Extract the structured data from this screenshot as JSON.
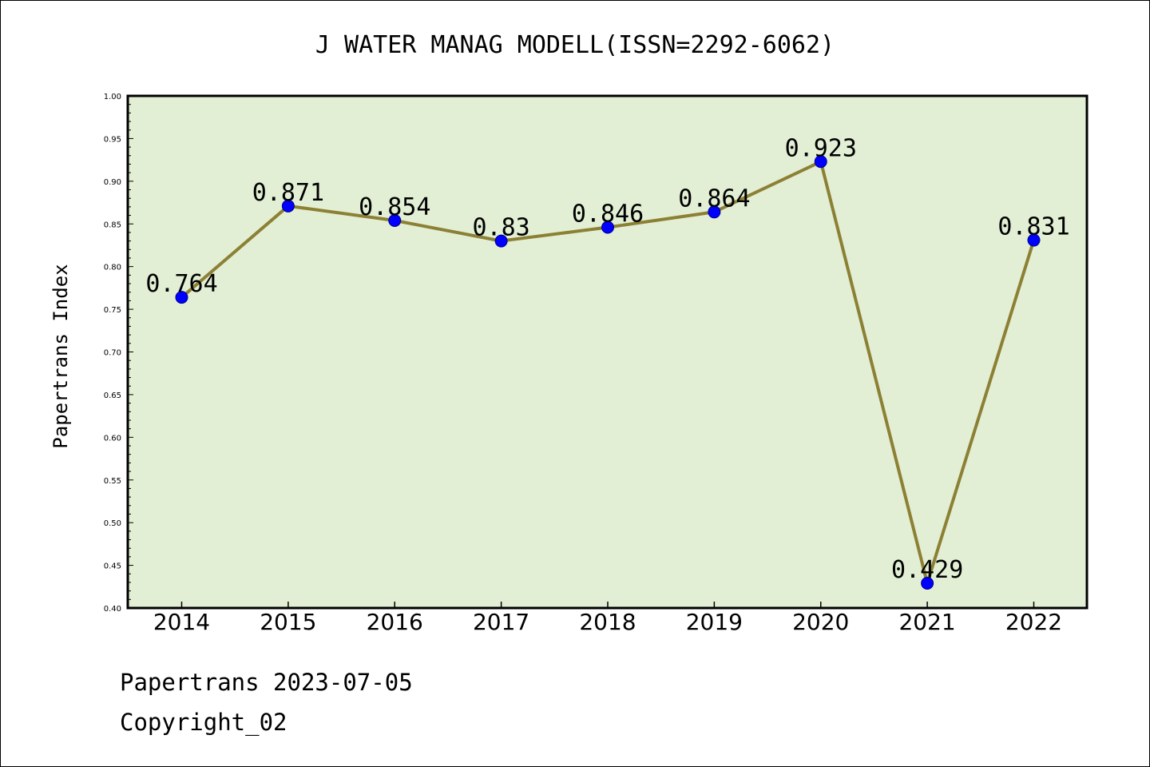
{
  "footer": {
    "line1": "Papertrans 2023-07-05",
    "line2": "Copyright_02"
  },
  "chart_data": {
    "type": "line",
    "title": "J WATER MANAG MODELL(ISSN=2292-6062)",
    "xlabel": "",
    "ylabel": "Papertrans Index",
    "categories": [
      "2014",
      "2015",
      "2016",
      "2017",
      "2018",
      "2019",
      "2020",
      "2021",
      "2022"
    ],
    "values": [
      0.764,
      0.871,
      0.854,
      0.83,
      0.846,
      0.864,
      0.923,
      0.429,
      0.831
    ],
    "data_labels": [
      "0.764",
      "0.871",
      "0.854",
      "0.83",
      "0.846",
      "0.864",
      "0.923",
      "0.429",
      "0.831"
    ],
    "ylim": [
      0.4,
      1.0
    ],
    "yticks": [
      "0.40",
      "0.45",
      "0.50",
      "0.55",
      "0.60",
      "0.65",
      "0.70",
      "0.75",
      "0.80",
      "0.85",
      "0.90",
      "0.95",
      "1.00"
    ],
    "grid": false,
    "colors": {
      "plot_background": "#e2efd5",
      "line": "#8c8034",
      "marker": "#0000ff"
    }
  }
}
